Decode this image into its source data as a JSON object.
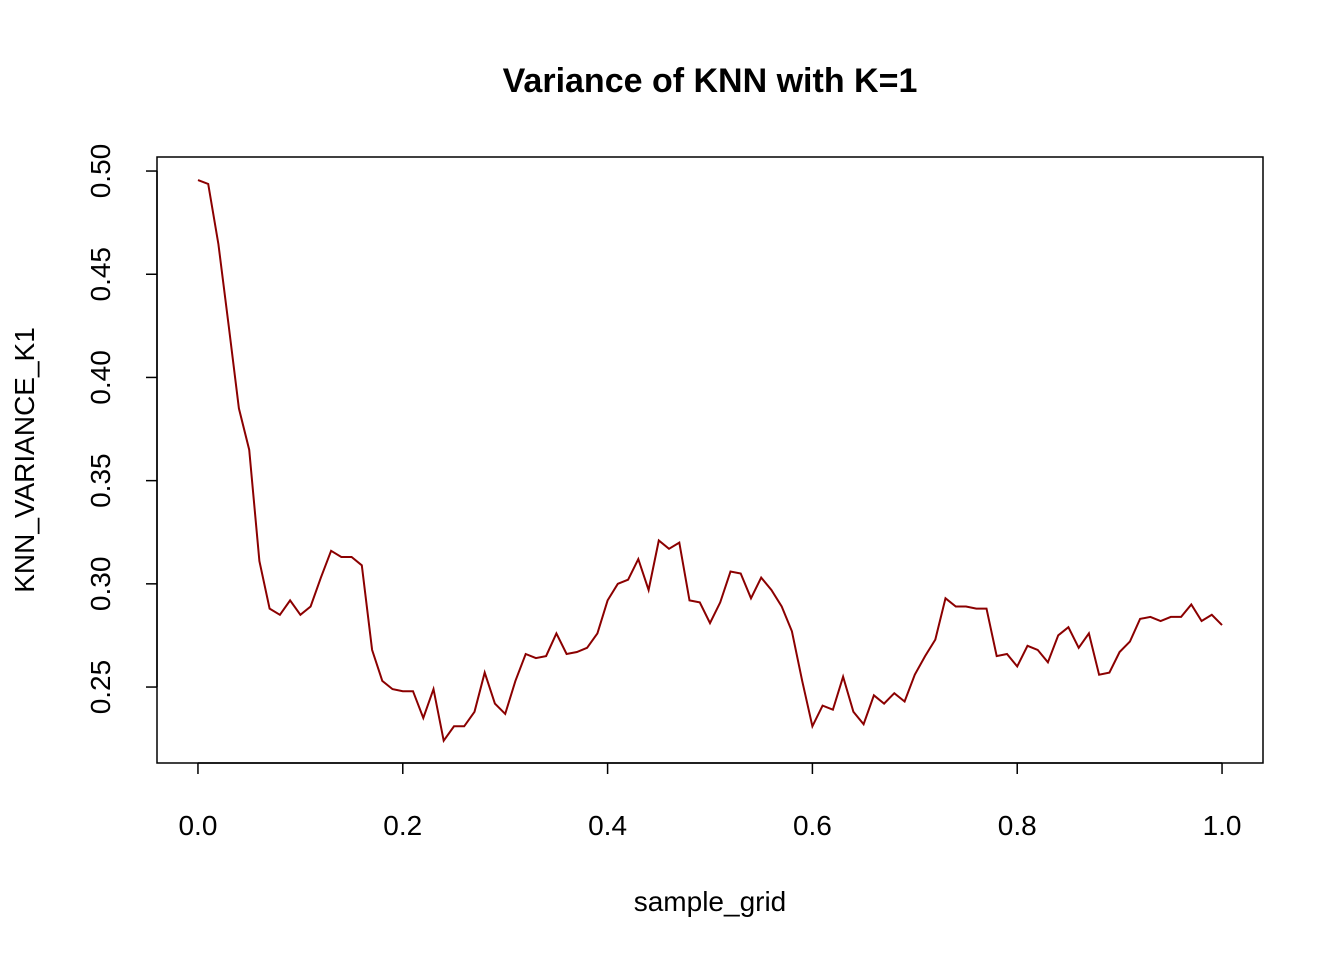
{
  "chart_data": {
    "type": "line",
    "title": "Variance of KNN with K=1",
    "xlabel": "sample_grid",
    "ylabel": "KNN_VARIANCE_K1",
    "xlim": [
      -0.04,
      1.04
    ],
    "ylim": [
      0.2132,
      0.5068
    ],
    "xticks": [
      0.0,
      0.2,
      0.4,
      0.6,
      0.8,
      1.0
    ],
    "xtick_labels": [
      "0.0",
      "0.2",
      "0.4",
      "0.6",
      "0.8",
      "1.0"
    ],
    "yticks": [
      0.25,
      0.3,
      0.35,
      0.4,
      0.45,
      0.5
    ],
    "ytick_labels": [
      "0.25",
      "0.30",
      "0.35",
      "0.40",
      "0.45",
      "0.50"
    ],
    "grid": false,
    "line_color": "#8B0000",
    "x_start": 0,
    "x_step": 0.01,
    "values": [
      0.4956,
      0.4937,
      0.4646,
      0.425,
      0.385,
      0.365,
      0.311,
      0.288,
      0.285,
      0.292,
      0.285,
      0.289,
      0.303,
      0.316,
      0.313,
      0.313,
      0.309,
      0.268,
      0.253,
      0.249,
      0.248,
      0.248,
      0.235,
      0.249,
      0.224,
      0.231,
      0.231,
      0.238,
      0.257,
      0.242,
      0.237,
      0.253,
      0.266,
      0.264,
      0.265,
      0.276,
      0.266,
      0.267,
      0.269,
      0.276,
      0.292,
      0.3,
      0.302,
      0.312,
      0.297,
      0.321,
      0.317,
      0.32,
      0.292,
      0.291,
      0.281,
      0.291,
      0.306,
      0.305,
      0.293,
      0.303,
      0.297,
      0.289,
      0.277,
      0.253,
      0.231,
      0.241,
      0.239,
      0.255,
      0.238,
      0.232,
      0.246,
      0.242,
      0.247,
      0.243,
      0.256,
      0.265,
      0.273,
      0.293,
      0.289,
      0.289,
      0.288,
      0.288,
      0.265,
      0.266,
      0.26,
      0.27,
      0.268,
      0.262,
      0.275,
      0.279,
      0.269,
      0.276,
      0.256,
      0.257,
      0.267,
      0.272,
      0.283,
      0.284,
      0.282,
      0.284,
      0.284,
      0.29,
      0.282,
      0.285,
      0.28
    ]
  }
}
